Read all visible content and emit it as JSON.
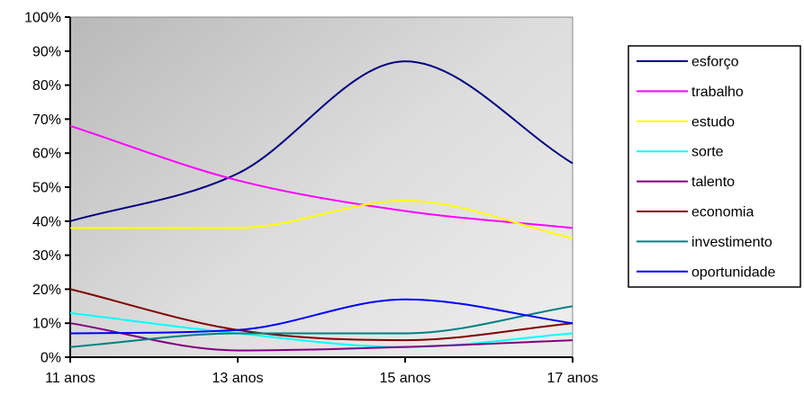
{
  "chart_data": {
    "type": "line",
    "title": "",
    "xlabel": "",
    "ylabel": "",
    "categories": [
      "11 anos",
      "13 anos",
      "15 anos",
      "17 anos"
    ],
    "ylim": [
      0,
      100
    ],
    "yticks": [
      "0%",
      "10%",
      "20%",
      "30%",
      "40%",
      "50%",
      "60%",
      "70%",
      "80%",
      "90%",
      "100%"
    ],
    "grid": false,
    "legend_position": "right",
    "series": [
      {
        "name": "esforço",
        "color": "#000080",
        "values": [
          40,
          54,
          87,
          57
        ]
      },
      {
        "name": "trabalho",
        "color": "#ff00ff",
        "values": [
          68,
          52,
          43,
          38
        ]
      },
      {
        "name": "estudo",
        "color": "#ffff00",
        "values": [
          38,
          38,
          46,
          35
        ]
      },
      {
        "name": "sorte",
        "color": "#00ffff",
        "values": [
          13,
          7,
          3,
          7
        ]
      },
      {
        "name": "talento",
        "color": "#800080",
        "values": [
          10,
          2,
          3,
          5
        ]
      },
      {
        "name": "economia",
        "color": "#800000",
        "values": [
          20,
          8,
          5,
          10
        ]
      },
      {
        "name": "investimento",
        "color": "#008080",
        "values": [
          3,
          7,
          7,
          15
        ]
      },
      {
        "name": "oportunidade",
        "color": "#0000ff",
        "values": [
          7,
          8,
          17,
          10
        ]
      }
    ]
  }
}
